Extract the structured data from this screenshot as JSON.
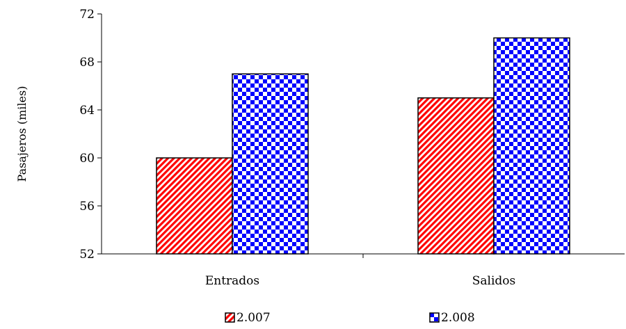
{
  "chart_data": {
    "type": "bar",
    "title": "",
    "xlabel": "",
    "ylabel": "Pasajeros (miles)",
    "categories": [
      "Entrados",
      "Salidos"
    ],
    "series": [
      {
        "name": "2.007",
        "values": [
          60,
          65
        ],
        "color": "#ff0000",
        "pattern": "diagonal-stripes"
      },
      {
        "name": "2.008",
        "values": [
          67,
          70
        ],
        "color": "#0000ff",
        "pattern": "checkerboard"
      }
    ],
    "ylim": [
      52,
      72
    ],
    "yticks": [
      52,
      56,
      60,
      64,
      68,
      72
    ],
    "grid": false,
    "legend": "bottom"
  }
}
